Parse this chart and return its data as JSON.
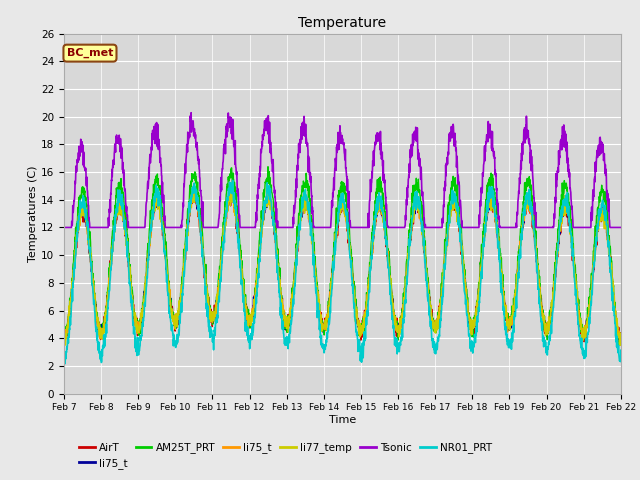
{
  "title": "Temperature",
  "xlabel": "Time",
  "ylabel": "Temperatures (C)",
  "ylim": [
    0,
    26
  ],
  "xlim": [
    0,
    15
  ],
  "fig_bg_color": "#e8e8e8",
  "plot_bg_color": "#d8d8d8",
  "annotation_text": "BC_met",
  "annotation_bg": "#ffff99",
  "annotation_border": "#8b4513",
  "legend_entries": [
    "AirT",
    "li75_t",
    "AM25T_PRT",
    "li75_t",
    "li77_temp",
    "Tsonic",
    "NR01_PRT"
  ],
  "line_colors": [
    "#cc0000",
    "#000099",
    "#00cc00",
    "#ff9900",
    "#cccc00",
    "#9900cc",
    "#00cccc"
  ],
  "line_widths": [
    1.0,
    1.0,
    1.0,
    1.0,
    1.0,
    1.2,
    1.2
  ],
  "xtick_labels": [
    "Feb 7",
    "Feb 8",
    "Feb 9",
    "Feb 10",
    "Feb 11",
    "Feb 12",
    "Feb 13",
    "Feb 14",
    "Feb 15",
    "Feb 16",
    "Feb 17",
    "Feb 18",
    "Feb 19",
    "Feb 20",
    "Feb 21",
    "Feb 22"
  ],
  "ytick_values": [
    0,
    2,
    4,
    6,
    8,
    10,
    12,
    14,
    16,
    18,
    20,
    22,
    24,
    26
  ]
}
